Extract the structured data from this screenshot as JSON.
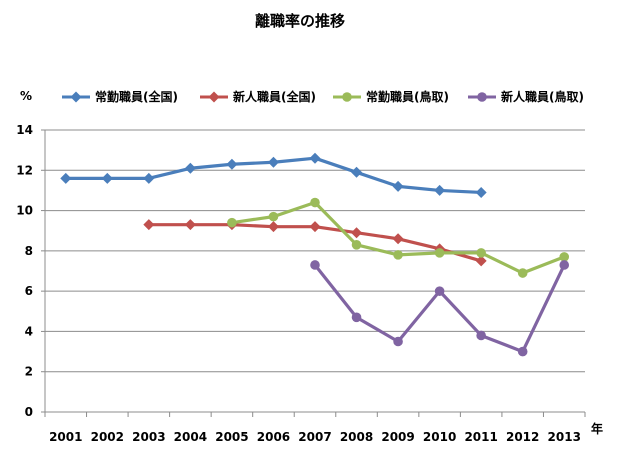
{
  "chart_data": {
    "type": "line",
    "title": "離職率の推移",
    "ylabel": "%",
    "xlabel": "年",
    "ylim": [
      0,
      14
    ],
    "y_ticks": [
      0,
      2,
      4,
      6,
      8,
      10,
      12,
      14
    ],
    "grid": true,
    "legend_position": "top",
    "categories": [
      "2001",
      "2002",
      "2003",
      "2004",
      "2005",
      "2006",
      "2007",
      "2008",
      "2009",
      "2010",
      "2011",
      "2012",
      "2013"
    ],
    "series": [
      {
        "name": "常勤職員(全国)",
        "color": "#4A7EBB",
        "marker": "diamond",
        "values": [
          11.6,
          11.6,
          11.6,
          12.1,
          12.3,
          12.4,
          12.6,
          11.9,
          11.2,
          11.0,
          10.9,
          null,
          null
        ]
      },
      {
        "name": "新人職員(全国)",
        "color": "#C0504D",
        "marker": "diamond",
        "values": [
          null,
          null,
          9.3,
          9.3,
          9.3,
          9.2,
          9.2,
          8.9,
          8.6,
          8.1,
          7.5,
          null,
          null
        ]
      },
      {
        "name": "常勤職員(鳥取)",
        "color": "#9BBB59",
        "marker": "circle",
        "values": [
          null,
          null,
          null,
          null,
          9.4,
          9.7,
          10.4,
          8.3,
          7.8,
          7.9,
          7.9,
          6.9,
          7.7
        ]
      },
      {
        "name": "新人職員(鳥取)",
        "color": "#8064A2",
        "marker": "circle",
        "values": [
          null,
          null,
          null,
          null,
          null,
          null,
          7.3,
          4.7,
          3.5,
          6.0,
          3.8,
          3.0,
          7.3
        ]
      }
    ]
  }
}
